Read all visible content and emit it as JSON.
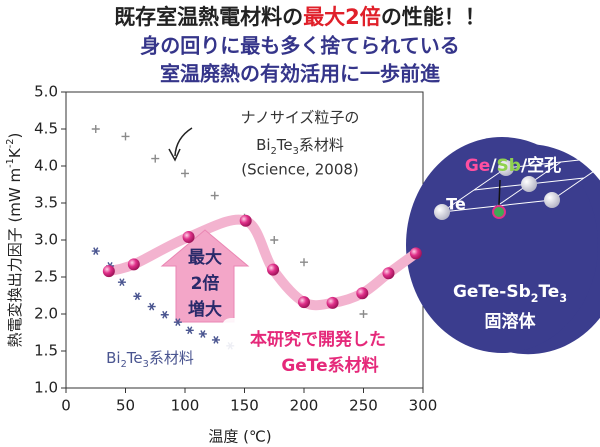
{
  "chart_data": {
    "type": "scatter",
    "title": [
      "既存室温熱電材料の",
      "最大2倍",
      "の性能！！"
    ],
    "subtitle": [
      "身の回りに最も多く捨てられている",
      "室温廃熱の有効活用に一歩前進"
    ],
    "x_label": "温度 (℃)",
    "y_label": [
      "熱電変換出力因子 (mW m",
      "-1",
      "K",
      "-2",
      ")"
    ],
    "xlim": [
      0,
      300
    ],
    "ylim": [
      1.0,
      5.0
    ],
    "xticks": [
      0,
      50,
      100,
      150,
      200,
      250,
      300
    ],
    "yticks": [
      {
        "value": 1.0,
        "label": "1.0"
      },
      {
        "value": 1.5,
        "label": "1.5"
      },
      {
        "value": 2.0,
        "label": "2.0"
      },
      {
        "value": 2.5,
        "label": "2.5"
      },
      {
        "value": 3.0,
        "label": "3.0"
      },
      {
        "value": 3.5,
        "label": "3.5"
      },
      {
        "value": 4.0,
        "label": "4.0"
      },
      {
        "value": 4.5,
        "label": "4.5"
      },
      {
        "value": 5.0,
        "label": "5.0"
      }
    ],
    "series": [
      {
        "marker": "plus",
        "color": "#8a8a8a",
        "x": [
          25,
          50,
          75,
          100,
          125,
          150,
          175,
          200,
          250
        ],
        "values": [
          4.5,
          4.4,
          4.1,
          3.9,
          3.6,
          3.3,
          3.0,
          2.7,
          2.0
        ]
      },
      {
        "marker": "star",
        "color": "#4a5590",
        "x": [
          25,
          37,
          47,
          60,
          72,
          83,
          94,
          104,
          115,
          126,
          138
        ],
        "values": [
          2.85,
          2.65,
          2.43,
          2.24,
          2.1,
          1.99,
          1.89,
          1.78,
          1.73,
          1.65,
          1.57
        ]
      },
      {
        "marker": "circle",
        "color": "#d4237a",
        "line_color": "#f3b3cf",
        "x": [
          36,
          57,
          103,
          151,
          174,
          200,
          224,
          249,
          271,
          294
        ],
        "values": [
          2.58,
          2.67,
          3.04,
          3.26,
          2.6,
          2.16,
          2.15,
          2.28,
          2.55,
          2.82
        ]
      }
    ],
    "annotations": {
      "nano": {
        "line1": "ナノサイズ粒子の",
        "formula": [
          "Bi",
          "2",
          "Te",
          "3",
          "系材料"
        ],
        "source": "(Science, 2008)"
      },
      "bulk": [
        "Bi",
        "2",
        "Te",
        "3",
        "系材料"
      ],
      "arrow": [
        "最大",
        "2倍",
        "増大"
      ],
      "this_work": [
        "本研究で開発した",
        "GeTe系材料"
      ],
      "crystal": {
        "site": [
          "Ge",
          "/",
          "Sb",
          "/空孔"
        ],
        "te": "Te",
        "name": [
          "GeTe-Sb",
          "2",
          "Te",
          "3"
        ],
        "type": "固溶体"
      }
    }
  }
}
